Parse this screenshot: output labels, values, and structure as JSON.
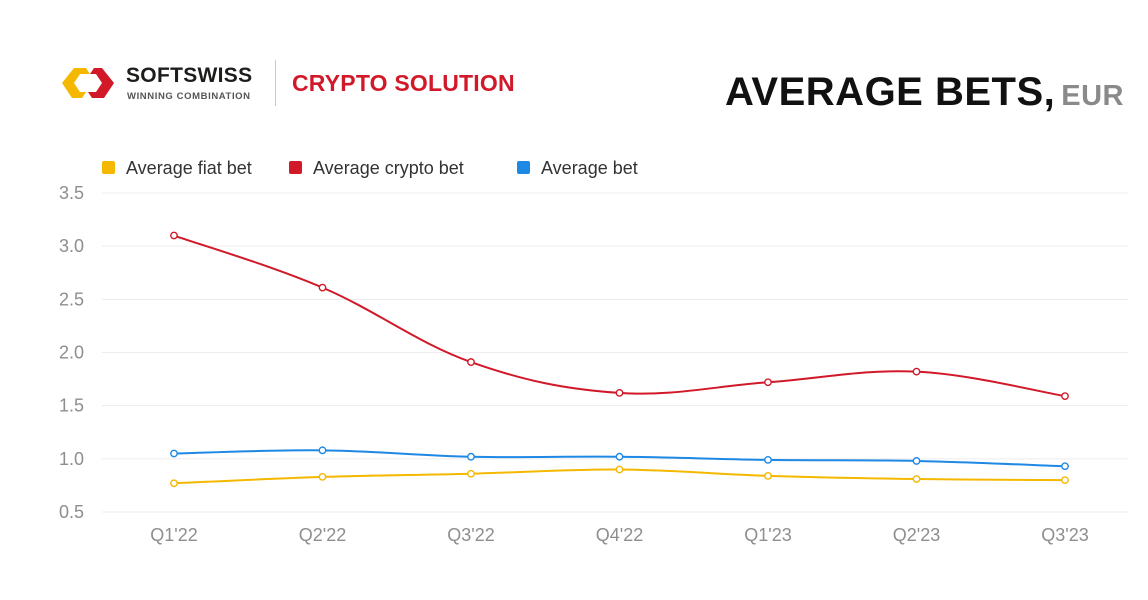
{
  "header": {
    "brand_name": "SOFTSWISS",
    "brand_tagline": "WINNING COMBINATION",
    "product_name": "CRYPTO SOLUTION",
    "title": "AVERAGE BETS,",
    "unit": "EUR"
  },
  "logo": {
    "colors": [
      "#f5b800",
      "#d1192a"
    ]
  },
  "chart_data": {
    "type": "line",
    "categories": [
      "Q1'22",
      "Q2'22",
      "Q3'22",
      "Q4'22",
      "Q1'23",
      "Q2'23",
      "Q3'23"
    ],
    "ylim": [
      0.5,
      3.5
    ],
    "yticks": [
      "3.5",
      "3.0",
      "2.5",
      "2.0",
      "1.5",
      "1.0",
      "0.5"
    ],
    "ytick_values": [
      3.5,
      3.0,
      2.5,
      2.0,
      1.5,
      1.0,
      0.5
    ],
    "grid": true,
    "legend_position": "top-left",
    "series": [
      {
        "name": "Average fiat bet",
        "color": "#f5b800",
        "values": [
          0.77,
          0.83,
          0.86,
          0.9,
          0.84,
          0.81,
          0.8
        ]
      },
      {
        "name": "Average crypto bet",
        "color": "#d1192a",
        "values": [
          3.1,
          2.61,
          1.91,
          1.62,
          1.72,
          1.82,
          1.59
        ]
      },
      {
        "name": "Average bet",
        "color": "#1e88e5",
        "values": [
          1.05,
          1.08,
          1.02,
          1.02,
          0.99,
          0.98,
          0.93
        ]
      }
    ]
  }
}
